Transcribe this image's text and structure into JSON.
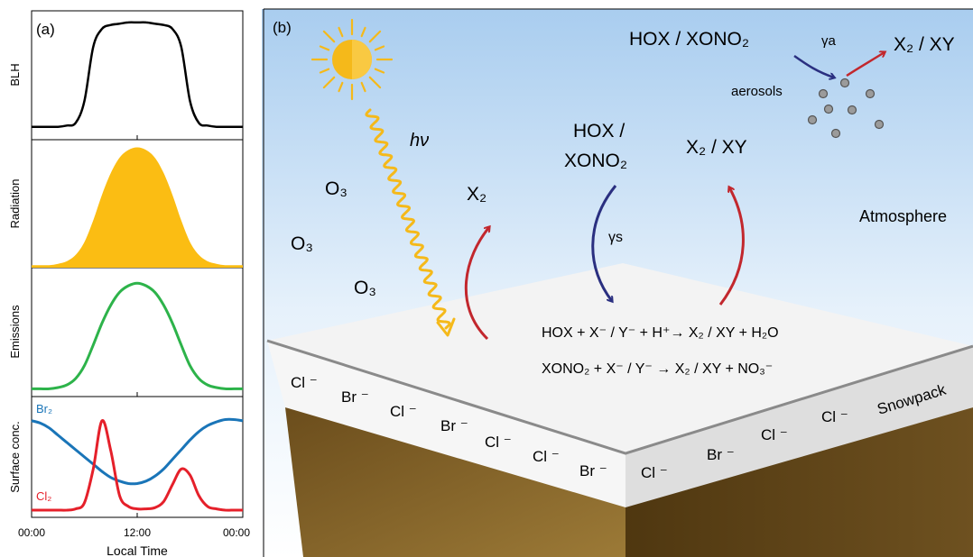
{
  "panel_a": {
    "label": "(a)",
    "xlabel": "Local Time",
    "xticks": [
      "00:00",
      "12:00",
      "00:00"
    ],
    "subplots": [
      {
        "ylabel": "BLH"
      },
      {
        "ylabel": "Radiation"
      },
      {
        "ylabel": "Emissions"
      },
      {
        "ylabel": "Surface conc."
      }
    ],
    "series_labels": {
      "br2": "Br₂",
      "cl2": "Cl₂"
    }
  },
  "panel_b": {
    "label": "(b)",
    "hv": "hν",
    "o3": "O₃",
    "x2": "X₂",
    "hox_left_1": "HOX /",
    "hox_left_2": "XONO₂",
    "x2xy_mid": "X₂ / XY",
    "gamma_s": "γs",
    "hox_top": "HOX / XONO₂",
    "gamma_a": "γa",
    "x2xy_top": "X₂ / XY",
    "aerosols": "aerosols",
    "atmosphere": "Atmosphere",
    "snowpack": "Snowpack",
    "reaction1": "HOX + X⁻ / Y⁻ + H⁺→ X₂ / XY + H₂O",
    "reaction2": "XONO₂ + X⁻ / Y⁻ → X₂ / XY + NO₃⁻",
    "ions": [
      "Cl ⁻",
      "Br ⁻",
      "Cl ⁻",
      "Br ⁻",
      "Cl ⁻",
      "Cl ⁻",
      "Br ⁻",
      "Cl ⁻",
      "Br ⁻",
      "Cl ⁻",
      "Cl ⁻"
    ]
  },
  "colors": {
    "blh": "#000000",
    "radiation": "#fbbd13",
    "emissions": "#2db34a",
    "br2": "#1a75b8",
    "cl2": "#e5202a",
    "sun": "#f5b91a",
    "arrow_red": "#c2272d",
    "arrow_blue": "#2a2f80",
    "snow_top": "#f3f3f3",
    "snow_side": "#dcdcdc",
    "soil": "#8a6a2e"
  },
  "chart_data": {
    "type": "line",
    "x_label": "Local Time",
    "x": [
      0,
      1,
      2,
      3,
      4,
      5,
      6,
      7,
      8,
      9,
      10,
      11,
      12,
      13,
      14,
      15,
      16,
      17,
      18,
      19,
      20,
      21,
      22,
      23,
      24
    ],
    "x_ticks": [
      "00:00",
      "12:00",
      "00:00"
    ],
    "series": [
      {
        "name": "BLH",
        "values": [
          0.1,
          0.1,
          0.1,
          0.1,
          0.11,
          0.13,
          0.3,
          0.72,
          0.86,
          0.89,
          0.9,
          0.91,
          0.91,
          0.91,
          0.9,
          0.89,
          0.86,
          0.72,
          0.3,
          0.13,
          0.11,
          0.1,
          0.1,
          0.1,
          0.1
        ]
      },
      {
        "name": "Radiation",
        "values": [
          0.02,
          0.02,
          0.02,
          0.03,
          0.05,
          0.1,
          0.2,
          0.37,
          0.57,
          0.74,
          0.86,
          0.92,
          0.94,
          0.92,
          0.86,
          0.74,
          0.57,
          0.37,
          0.2,
          0.1,
          0.05,
          0.03,
          0.02,
          0.02,
          0.02
        ]
      },
      {
        "name": "Emissions",
        "values": [
          0.06,
          0.06,
          0.06,
          0.07,
          0.09,
          0.14,
          0.24,
          0.4,
          0.57,
          0.71,
          0.81,
          0.86,
          0.88,
          0.86,
          0.81,
          0.71,
          0.57,
          0.4,
          0.24,
          0.14,
          0.09,
          0.07,
          0.06,
          0.06,
          0.06
        ]
      },
      {
        "name": "Br2",
        "values": [
          0.8,
          0.78,
          0.74,
          0.68,
          0.62,
          0.56,
          0.5,
          0.44,
          0.38,
          0.33,
          0.3,
          0.28,
          0.28,
          0.3,
          0.34,
          0.4,
          0.48,
          0.56,
          0.64,
          0.71,
          0.76,
          0.79,
          0.81,
          0.81,
          0.8
        ]
      },
      {
        "name": "Cl2",
        "values": [
          0.06,
          0.06,
          0.06,
          0.06,
          0.06,
          0.07,
          0.12,
          0.4,
          0.8,
          0.55,
          0.18,
          0.09,
          0.07,
          0.07,
          0.08,
          0.13,
          0.27,
          0.4,
          0.35,
          0.18,
          0.09,
          0.07,
          0.06,
          0.06,
          0.06
        ]
      }
    ]
  }
}
